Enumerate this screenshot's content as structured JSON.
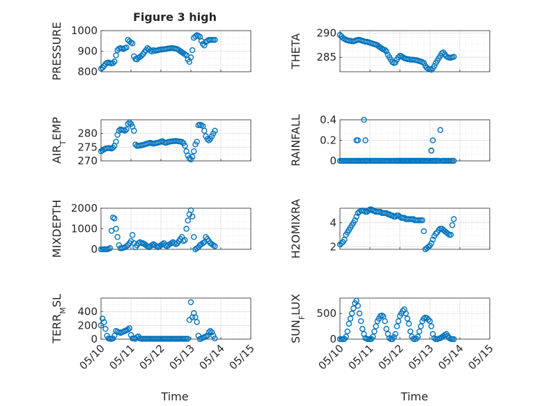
{
  "figure_title": "Figure 3 high",
  "x_axis": {
    "ticks": [
      "05/10",
      "05/11",
      "05/12",
      "05/13",
      "05/14",
      "05/15"
    ],
    "label": "Time"
  },
  "colors": {
    "marker": "#0072BD",
    "grid": "#dedede",
    "axis": "#262626"
  },
  "chart_data": [
    {
      "type": "scatter",
      "id": "pressure",
      "ylabel_parts": [
        "PRESSURE"
      ],
      "ylim": [
        800,
        1000
      ],
      "yticks": [
        800,
        900,
        1000
      ],
      "xlim": [
        0,
        5
      ],
      "x": [
        0,
        0.05,
        0.1,
        0.15,
        0.2,
        0.25,
        0.3,
        0.35,
        0.4,
        0.45,
        0.5,
        0.55,
        0.6,
        0.65,
        0.7,
        0.75,
        0.8,
        0.85,
        0.9,
        0.95,
        1,
        1.05,
        1.1,
        1.15,
        1.2,
        1.25,
        1.3,
        1.35,
        1.4,
        1.45,
        1.5,
        1.55,
        1.6,
        1.65,
        1.7,
        1.75,
        1.8,
        1.85,
        1.9,
        1.95,
        2,
        2.05,
        2.1,
        2.15,
        2.2,
        2.25,
        2.3,
        2.35,
        2.4,
        2.45,
        2.5,
        2.55,
        2.6,
        2.65,
        2.7,
        2.75,
        2.8,
        2.85,
        2.9,
        2.95,
        3,
        3.05,
        3.1,
        3.15,
        3.2,
        3.25,
        3.3,
        3.35,
        3.4,
        3.45,
        3.5,
        3.55,
        3.6,
        3.65,
        3.7,
        3.75,
        3.8
      ],
      "y": [
        815,
        820,
        828,
        838,
        843,
        845,
        842,
        840,
        842,
        850,
        880,
        905,
        912,
        915,
        913,
        910,
        915,
        918,
        955,
        948,
        942,
        938,
        875,
        862,
        860,
        868,
        872,
        878,
        885,
        895,
        905,
        915,
        910,
        902,
        898,
        905,
        902,
        903,
        905,
        907,
        908,
        909,
        910,
        910,
        912,
        913,
        914,
        915,
        915,
        913,
        912,
        910,
        905,
        900,
        895,
        890,
        885,
        880,
        860,
        848,
        870,
        905,
        965,
        972,
        978,
        975,
        970,
        950,
        935,
        928,
        945,
        950,
        955,
        955,
        955,
        955,
        955
      ]
    },
    {
      "type": "scatter",
      "id": "theta",
      "ylabel_parts": [
        "THETA"
      ],
      "ylim": [
        282,
        290.5
      ],
      "yticks": [
        285,
        290
      ],
      "xlim": [
        0,
        5
      ],
      "x": [
        0,
        0.05,
        0.1,
        0.15,
        0.2,
        0.25,
        0.3,
        0.35,
        0.4,
        0.45,
        0.5,
        0.55,
        0.6,
        0.65,
        0.7,
        0.75,
        0.8,
        0.85,
        0.9,
        0.95,
        1,
        1.05,
        1.1,
        1.15,
        1.2,
        1.25,
        1.3,
        1.35,
        1.4,
        1.45,
        1.5,
        1.55,
        1.6,
        1.65,
        1.7,
        1.75,
        1.8,
        1.85,
        1.9,
        1.95,
        2,
        2.05,
        2.1,
        2.15,
        2.2,
        2.25,
        2.3,
        2.35,
        2.4,
        2.45,
        2.5,
        2.55,
        2.6,
        2.65,
        2.7,
        2.75,
        2.8,
        2.85,
        2.9,
        2.95,
        3,
        3.05,
        3.1,
        3.15,
        3.2,
        3.25,
        3.3,
        3.35,
        3.4,
        3.45,
        3.5,
        3.55,
        3.6,
        3.65,
        3.7,
        3.75,
        3.8
      ],
      "y": [
        289.6,
        289.3,
        289,
        288.8,
        288.6,
        288.5,
        288.4,
        288.4,
        288.3,
        288.3,
        288.4,
        288.5,
        288.6,
        288.6,
        288.5,
        288.4,
        288.3,
        288.2,
        288.2,
        288.1,
        288,
        287.9,
        287.8,
        287.7,
        287.6,
        287.5,
        287.2,
        287,
        286.8,
        286.6,
        286.5,
        286.2,
        285.5,
        285,
        284.5,
        284,
        283.8,
        283.9,
        284.5,
        285,
        285.3,
        285.2,
        285,
        284.8,
        284.7,
        284.6,
        284.6,
        284.5,
        284.5,
        284.5,
        284.4,
        284.4,
        284.3,
        284.2,
        284.1,
        284,
        283.8,
        283.2,
        282.8,
        282.6,
        282.5,
        282.4,
        282.7,
        283.2,
        283.8,
        284.3,
        284.8,
        285.3,
        285.8,
        286,
        285.6,
        285.2,
        285,
        284.9,
        284.9,
        285,
        285.1
      ]
    },
    {
      "type": "scatter",
      "id": "air-temp",
      "ylabel_parts": [
        "AIR",
        "T",
        "EMP"
      ],
      "ylim": [
        270,
        285
      ],
      "yticks": [
        270,
        275,
        280
      ],
      "xlim": [
        0,
        5
      ],
      "x": [
        0,
        0.05,
        0.1,
        0.15,
        0.2,
        0.25,
        0.3,
        0.35,
        0.4,
        0.45,
        0.5,
        0.55,
        0.6,
        0.65,
        0.7,
        0.75,
        0.8,
        0.85,
        0.9,
        0.95,
        1,
        1.05,
        1.1,
        1.15,
        1.2,
        1.25,
        1.3,
        1.35,
        1.4,
        1.45,
        1.5,
        1.55,
        1.6,
        1.65,
        1.7,
        1.75,
        1.8,
        1.85,
        1.9,
        1.95,
        2,
        2.05,
        2.1,
        2.15,
        2.2,
        2.25,
        2.3,
        2.35,
        2.4,
        2.45,
        2.5,
        2.55,
        2.6,
        2.65,
        2.7,
        2.75,
        2.8,
        2.85,
        2.9,
        2.95,
        3,
        3.05,
        3.1,
        3.15,
        3.2,
        3.25,
        3.3,
        3.35,
        3.4,
        3.45,
        3.5,
        3.55,
        3.6,
        3.65,
        3.7,
        3.75,
        3.8
      ],
      "y": [
        273.5,
        273.8,
        274.2,
        274.5,
        274.6,
        274.7,
        274.6,
        274.5,
        274.8,
        275.5,
        277,
        279.5,
        281,
        281.5,
        281.3,
        281.2,
        281,
        281.5,
        283.5,
        284,
        283.5,
        282.5,
        281,
        276,
        275.5,
        275.5,
        275.6,
        275.7,
        275.8,
        276,
        276.2,
        276.3,
        276.5,
        276.6,
        276.4,
        276.3,
        276.4,
        276.5,
        276.6,
        276.8,
        277,
        277.2,
        276.8,
        276.6,
        276.7,
        276.9,
        277,
        277.1,
        277.2,
        277.2,
        277.3,
        277.2,
        277.1,
        277,
        276.9,
        276.5,
        275.5,
        273.5,
        272,
        271,
        270.5,
        271.5,
        273.5,
        276,
        277,
        283,
        283.2,
        283,
        282.7,
        281,
        279,
        278,
        277.5,
        278,
        279,
        280,
        281
      ]
    },
    {
      "type": "scatter",
      "id": "rainfall",
      "ylabel_parts": [
        "RAINFALL"
      ],
      "ylim": [
        0,
        0.4
      ],
      "yticks": [
        0,
        0.2,
        0.4
      ],
      "xlim": [
        0,
        5
      ],
      "x": [
        0,
        0.05,
        0.1,
        0.15,
        0.2,
        0.25,
        0.3,
        0.35,
        0.4,
        0.45,
        0.5,
        0.55,
        0.6,
        0.65,
        0.7,
        0.75,
        0.8,
        0.85,
        0.9,
        0.95,
        1,
        1.05,
        1.1,
        1.15,
        1.2,
        1.25,
        1.3,
        1.35,
        1.4,
        1.45,
        1.5,
        1.55,
        1.6,
        1.65,
        1.7,
        1.75,
        1.8,
        1.85,
        1.9,
        1.95,
        2,
        2.05,
        2.1,
        2.15,
        2.2,
        2.25,
        2.3,
        2.35,
        2.4,
        2.45,
        2.5,
        2.55,
        2.6,
        2.65,
        2.7,
        2.75,
        2.8,
        2.85,
        2.9,
        2.95,
        3,
        3.05,
        3.1,
        3.15,
        3.2,
        3.25,
        3.3,
        3.35,
        3.4,
        3.45,
        3.5,
        3.55,
        3.6,
        3.65,
        3.7,
        3.75,
        3.8,
        0.55,
        0.6,
        0.65,
        0.75,
        0.8,
        0.85,
        0.85,
        0.9,
        1.9,
        1.95,
        2.0,
        2.05,
        2.1,
        2.15,
        2.2,
        2.25,
        2.3,
        2.35,
        2.4,
        2.45,
        2.5,
        2.55,
        2.6,
        2.65,
        2.7,
        2.75,
        2.8,
        2.85,
        2.9,
        3.0,
        3.05,
        3.05,
        3.1,
        3.15,
        3.2,
        3.2,
        3.3,
        3.45,
        3.5
      ],
      "y": [
        0,
        0,
        0,
        0,
        0,
        0,
        0,
        0,
        0,
        0,
        0,
        0.2,
        0.2,
        0,
        0,
        0,
        0.4,
        0.2,
        0,
        0,
        0,
        0,
        0,
        0,
        0,
        0,
        0,
        0,
        0,
        0,
        0,
        0,
        0,
        0,
        0,
        0,
        0,
        0,
        0,
        0,
        0,
        0,
        0,
        0,
        0,
        0,
        0,
        0,
        0,
        0,
        0,
        0,
        0,
        0,
        0,
        0,
        0,
        0,
        0,
        0,
        0,
        0.1,
        0.2,
        0,
        0,
        0,
        0,
        0.3,
        0,
        0,
        0,
        0,
        0,
        0,
        0,
        0,
        0,
        0,
        0,
        0,
        0,
        0,
        0,
        0,
        0,
        0,
        0,
        0,
        0,
        0,
        0,
        0,
        0,
        0,
        0,
        0,
        0,
        0,
        0,
        0,
        0,
        0,
        0,
        0,
        0,
        0,
        0,
        0,
        0.1,
        0,
        0,
        0,
        0,
        0,
        0,
        0
      ]
    },
    {
      "type": "scatter",
      "id": "mixdepth",
      "ylabel_parts": [
        "MIXDEPTH"
      ],
      "ylim": [
        0,
        2000
      ],
      "yticks": [
        0,
        1000,
        2000
      ],
      "xlim": [
        0,
        5
      ],
      "x": [
        0,
        0.05,
        0.1,
        0.15,
        0.2,
        0.25,
        0.3,
        0.35,
        0.4,
        0.45,
        0.5,
        0.55,
        0.6,
        0.65,
        0.7,
        0.75,
        0.8,
        0.85,
        0.9,
        0.95,
        1,
        1.05,
        1.1,
        1.15,
        1.2,
        1.25,
        1.3,
        1.35,
        1.4,
        1.45,
        1.5,
        1.55,
        1.6,
        1.65,
        1.7,
        1.75,
        1.8,
        1.85,
        1.9,
        1.95,
        2,
        2.05,
        2.1,
        2.15,
        2.2,
        2.25,
        2.3,
        2.35,
        2.4,
        2.45,
        2.5,
        2.55,
        2.6,
        2.65,
        2.7,
        2.75,
        2.8,
        2.85,
        2.9,
        2.95,
        3,
        3.05,
        3.1,
        3.15,
        3.2,
        3.25,
        3.3,
        3.35,
        3.4,
        3.45,
        3.5,
        3.55,
        3.6,
        3.65,
        3.7,
        3.75,
        3.8
      ],
      "y": [
        0,
        0,
        0,
        0,
        0,
        20,
        60,
        900,
        1550,
        1500,
        1000,
        600,
        200,
        50,
        50,
        80,
        100,
        150,
        200,
        300,
        400,
        700,
        300,
        100,
        200,
        300,
        350,
        300,
        300,
        250,
        200,
        150,
        100,
        150,
        200,
        250,
        200,
        150,
        100,
        150,
        200,
        250,
        300,
        200,
        150,
        200,
        250,
        300,
        350,
        300,
        250,
        300,
        400,
        500,
        600,
        400,
        450,
        1000,
        1400,
        1700,
        1900,
        1600,
        600,
        0,
        50,
        100,
        200,
        250,
        300,
        350,
        600,
        500,
        400,
        300,
        250,
        200,
        150
      ]
    },
    {
      "type": "scatter",
      "id": "h2omixra",
      "ylabel_parts": [
        "H2OMIXRA"
      ],
      "ylim": [
        1.8,
        5.2
      ],
      "yticks": [
        2,
        4
      ],
      "xlim": [
        0,
        5
      ],
      "x": [
        0,
        0.05,
        0.1,
        0.15,
        0.2,
        0.25,
        0.3,
        0.35,
        0.4,
        0.45,
        0.5,
        0.55,
        0.6,
        0.65,
        0.7,
        0.75,
        0.8,
        0.85,
        0.9,
        0.95,
        1,
        1.05,
        1.1,
        1.15,
        1.2,
        1.25,
        1.3,
        1.35,
        1.4,
        1.45,
        1.5,
        1.55,
        1.6,
        1.65,
        1.7,
        1.75,
        1.8,
        1.85,
        1.9,
        1.95,
        2,
        2.05,
        2.1,
        2.15,
        2.2,
        2.25,
        2.3,
        2.35,
        2.4,
        2.45,
        2.5,
        2.55,
        2.6,
        2.65,
        2.7,
        2.75,
        2.8,
        2.85,
        2.9,
        2.95,
        3,
        3.05,
        3.1,
        3.15,
        3.2,
        3.25,
        3.3,
        3.35,
        3.4,
        3.45,
        3.5,
        3.55,
        3.6,
        3.65,
        3.7,
        3.75,
        3.8
      ],
      "y": [
        2.2,
        2.3,
        2.4,
        2.6,
        3,
        3.2,
        3.4,
        3.6,
        3.8,
        4,
        4.2,
        4.5,
        4.8,
        4.9,
        5,
        5,
        5,
        4.9,
        4.9,
        5,
        5.1,
        5.1,
        5,
        5,
        4.9,
        4.9,
        4.9,
        4.9,
        4.8,
        4.8,
        4.8,
        4.8,
        4.7,
        4.7,
        4.6,
        4.6,
        4.5,
        4.5,
        4.6,
        4.6,
        4.5,
        4.4,
        4.4,
        4.4,
        4.3,
        4.3,
        4.3,
        4.3,
        4.3,
        4.3,
        4.2,
        4.2,
        4.2,
        4.2,
        4.2,
        4.2,
        3.3,
        1.8,
        1.9,
        2.0,
        2.1,
        2.3,
        2.6,
        2.9,
        3.1,
        3.2,
        3.4,
        3.5,
        3.5,
        3.4,
        3.3,
        3.2,
        3.1,
        3.0,
        3.0,
        3.8,
        4.3
      ]
    },
    {
      "type": "scatter",
      "id": "terr-msl",
      "ylabel_parts": [
        "TERR",
        "M",
        "SL"
      ],
      "ylim": [
        0,
        600
      ],
      "yticks": [
        0,
        200,
        400
      ],
      "xlim": [
        0,
        5
      ],
      "x": [
        0,
        0.05,
        0.1,
        0.15,
        0.2,
        0.25,
        0.3,
        0.35,
        0.4,
        0.45,
        0.5,
        0.55,
        0.6,
        0.65,
        0.7,
        0.75,
        0.8,
        0.85,
        0.9,
        0.95,
        1,
        1.05,
        1.1,
        1.15,
        1.2,
        1.25,
        1.3,
        1.35,
        1.4,
        1.45,
        1.5,
        1.55,
        1.6,
        1.65,
        1.7,
        1.75,
        1.8,
        1.85,
        1.9,
        1.95,
        2,
        2.05,
        2.1,
        2.15,
        2.2,
        2.25,
        2.3,
        2.35,
        2.4,
        2.45,
        2.5,
        2.55,
        2.6,
        2.65,
        2.7,
        2.75,
        2.8,
        2.85,
        2.9,
        2.95,
        3,
        3.05,
        3.1,
        3.15,
        3.2,
        3.25,
        3.3,
        3.35,
        3.4,
        3.45,
        3.5,
        3.55,
        3.6,
        3.65,
        3.7,
        3.75,
        3.8
      ],
      "y": [
        200,
        300,
        250,
        150,
        50,
        10,
        5,
        5,
        10,
        50,
        120,
        110,
        100,
        90,
        100,
        110,
        120,
        130,
        140,
        160,
        60,
        10,
        10,
        5,
        30,
        40,
        10,
        5,
        5,
        5,
        5,
        5,
        5,
        5,
        5,
        5,
        5,
        5,
        5,
        5,
        5,
        5,
        5,
        5,
        5,
        5,
        5,
        5,
        5,
        5,
        5,
        5,
        5,
        5,
        5,
        5,
        5,
        5,
        5,
        280,
        540,
        320,
        380,
        320,
        250,
        50,
        0,
        10,
        20,
        30,
        40,
        50,
        100,
        120,
        100,
        50,
        10
      ]
    },
    {
      "type": "scatter",
      "id": "sunflux",
      "ylabel_parts": [
        "SUN",
        "F",
        "LUX"
      ],
      "ylim": [
        0,
        800
      ],
      "yticks": [
        0,
        500
      ],
      "xlim": [
        0,
        5
      ],
      "x": [
        0,
        0.05,
        0.1,
        0.15,
        0.2,
        0.25,
        0.3,
        0.35,
        0.4,
        0.45,
        0.5,
        0.55,
        0.6,
        0.65,
        0.7,
        0.75,
        0.8,
        0.85,
        0.9,
        0.95,
        1,
        1.05,
        1.1,
        1.15,
        1.2,
        1.25,
        1.3,
        1.35,
        1.4,
        1.45,
        1.5,
        1.55,
        1.6,
        1.65,
        1.7,
        1.75,
        1.8,
        1.85,
        1.9,
        1.95,
        2,
        2.05,
        2.1,
        2.15,
        2.2,
        2.25,
        2.3,
        2.35,
        2.4,
        2.45,
        2.5,
        2.55,
        2.6,
        2.65,
        2.7,
        2.75,
        2.8,
        2.85,
        2.9,
        2.95,
        3,
        3.05,
        3.1,
        3.15,
        3.2,
        3.25,
        3.3,
        3.35,
        3.4,
        3.45,
        3.5,
        3.55,
        3.6,
        3.65,
        3.7,
        3.75,
        3.8
      ],
      "y": [
        0,
        0,
        0,
        5,
        50,
        150,
        300,
        400,
        500,
        600,
        700,
        750,
        650,
        500,
        350,
        200,
        100,
        20,
        5,
        0,
        0,
        5,
        50,
        150,
        250,
        350,
        400,
        450,
        460,
        440,
        350,
        200,
        100,
        20,
        0,
        0,
        40,
        100,
        250,
        350,
        450,
        500,
        550,
        580,
        500,
        400,
        300,
        150,
        50,
        5,
        0,
        10,
        50,
        150,
        250,
        350,
        400,
        420,
        410,
        380,
        350,
        250,
        100,
        20,
        0,
        0,
        10,
        20,
        40,
        60,
        80,
        100,
        60,
        20,
        5,
        0,
        0
      ]
    }
  ]
}
